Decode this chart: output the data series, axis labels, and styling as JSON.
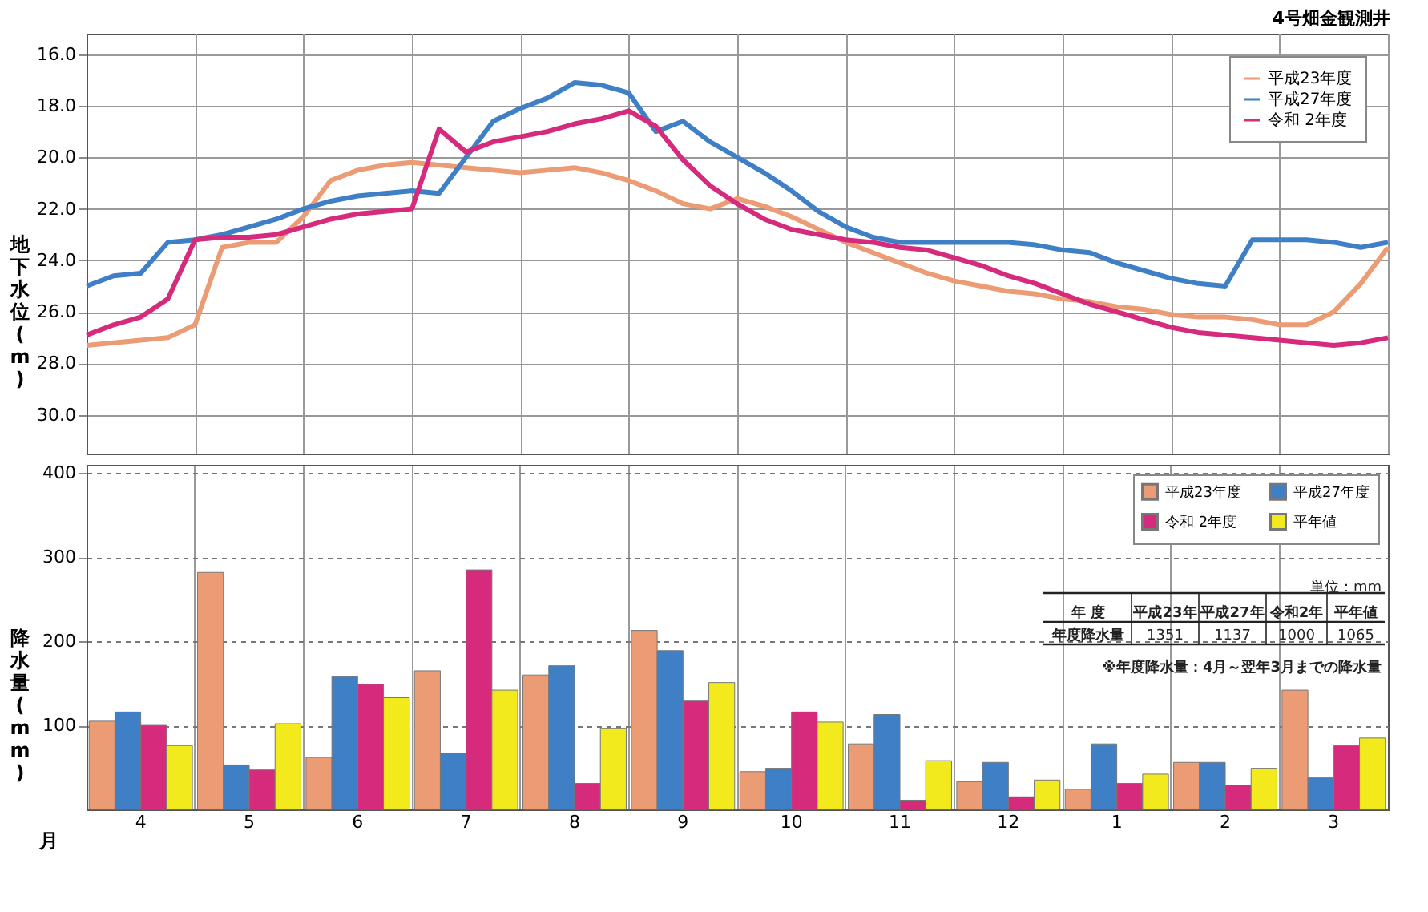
{
  "chart_data": [
    {
      "type": "line",
      "title": "4号畑金観測井",
      "ylabel": "地下水位(m)",
      "categories": [
        null,
        null,
        null,
        null,
        null,
        null,
        null,
        null,
        null,
        null,
        null,
        null,
        null,
        null,
        null,
        null,
        null,
        null,
        null,
        null,
        null,
        null,
        null,
        null,
        null,
        null,
        null,
        null,
        null,
        null,
        null,
        null,
        null,
        null,
        null,
        null,
        null,
        null,
        null,
        null,
        null,
        null,
        null,
        null,
        null,
        null,
        null,
        null,
        null
      ],
      "ylim": [
        31.5,
        15.2
      ],
      "yticks": [
        {
          "value": 16,
          "label": "16.0"
        },
        {
          "value": 18,
          "label": "18.0"
        },
        {
          "value": 20,
          "label": "20.0"
        },
        {
          "value": 22,
          "label": "22.0"
        },
        {
          "value": 24,
          "label": "24.0"
        },
        {
          "value": 26,
          "label": "26.0"
        },
        {
          "value": 28,
          "label": "28.0"
        },
        {
          "value": 30,
          "label": "30.0"
        }
      ],
      "tick_labels": "y",
      "grid": true,
      "legend": "top right",
      "line_style": "solid",
      "marker": "none",
      "series": [
        {
          "name": "平成23年度",
          "color": "#eb9c74",
          "values": [
            27.3,
            27.2,
            27.1,
            27.0,
            26.5,
            23.5,
            23.3,
            23.3,
            22.3,
            20.9,
            20.5,
            20.3,
            20.2,
            20.3,
            20.4,
            20.5,
            20.6,
            20.5,
            20.4,
            20.6,
            20.9,
            21.3,
            21.8,
            22.0,
            21.6,
            21.9,
            22.3,
            22.8,
            23.3,
            23.7,
            24.1,
            24.5,
            24.8,
            25.0,
            25.2,
            25.3,
            25.5,
            25.6,
            25.8,
            25.9,
            26.1,
            26.2,
            26.2,
            26.3,
            26.5,
            26.5,
            26.0,
            24.9,
            23.5
          ]
        },
        {
          "name": "平成27年度",
          "color": "#3f7fc6",
          "values": [
            25.0,
            24.6,
            24.5,
            23.3,
            23.2,
            23.0,
            22.7,
            22.4,
            22.0,
            21.7,
            21.5,
            21.4,
            21.3,
            21.4,
            20.0,
            18.6,
            18.1,
            17.7,
            17.1,
            17.2,
            17.5,
            19.0,
            18.6,
            19.4,
            20.0,
            20.6,
            21.3,
            22.1,
            22.7,
            23.1,
            23.3,
            23.3,
            23.3,
            23.3,
            23.3,
            23.4,
            23.6,
            23.7,
            24.1,
            24.4,
            24.7,
            24.9,
            25.0,
            23.2,
            23.2,
            23.2,
            23.3,
            23.5,
            23.3
          ]
        },
        {
          "name": "令和 2年度",
          "color": "#d62a7c",
          "values": [
            26.9,
            26.5,
            26.2,
            25.5,
            23.2,
            23.1,
            23.1,
            23.0,
            22.7,
            22.4,
            22.2,
            22.1,
            22.0,
            18.9,
            19.8,
            19.4,
            19.2,
            19.0,
            18.7,
            18.5,
            18.2,
            18.8,
            20.1,
            21.1,
            21.8,
            22.4,
            22.8,
            23.0,
            23.2,
            23.3,
            23.5,
            23.6,
            23.9,
            24.2,
            24.6,
            24.9,
            25.3,
            25.7,
            26.0,
            26.3,
            26.6,
            26.8,
            26.9,
            27.0,
            27.1,
            27.2,
            27.3,
            27.2,
            27.0
          ]
        }
      ]
    },
    {
      "type": "bar",
      "ylabel": "降水量(mm)",
      "xlabel": "月",
      "categories": [
        "4",
        "5",
        "6",
        "7",
        "8",
        "9",
        "10",
        "11",
        "12",
        "1",
        "2",
        "3"
      ],
      "ylim": [
        0,
        410
      ],
      "yticks": [
        100,
        200,
        300,
        400
      ],
      "grid": true,
      "legend": "top right",
      "series": [
        {
          "name": "平成23年度",
          "color": "#eb9c74",
          "values": [
            105,
            282,
            62,
            165,
            160,
            213,
            45,
            78,
            33,
            24,
            56,
            142
          ]
        },
        {
          "name": "平成27年度",
          "color": "#3f7fc6",
          "values": [
            116,
            53,
            158,
            67,
            171,
            189,
            49,
            113,
            56,
            78,
            56,
            38
          ]
        },
        {
          "name": "令和 2年度",
          "color": "#d62a7c",
          "values": [
            100,
            47,
            149,
            285,
            31,
            129,
            116,
            11,
            15,
            31,
            29,
            76
          ]
        },
        {
          "name": "平年値",
          "color": "#f2ea1c",
          "values": [
            76,
            102,
            133,
            142,
            96,
            151,
            104,
            58,
            35,
            42,
            49,
            85
          ]
        }
      ],
      "annotations": [
        "単位：mm",
        "年 度",
        "平成23年",
        "平成27年",
        "令和2年",
        "平年値",
        "年度降水量",
        "1351",
        "1137",
        "1000",
        "1065",
        "※年度降水量：4月～翌年3月までの降水量"
      ]
    }
  ]
}
